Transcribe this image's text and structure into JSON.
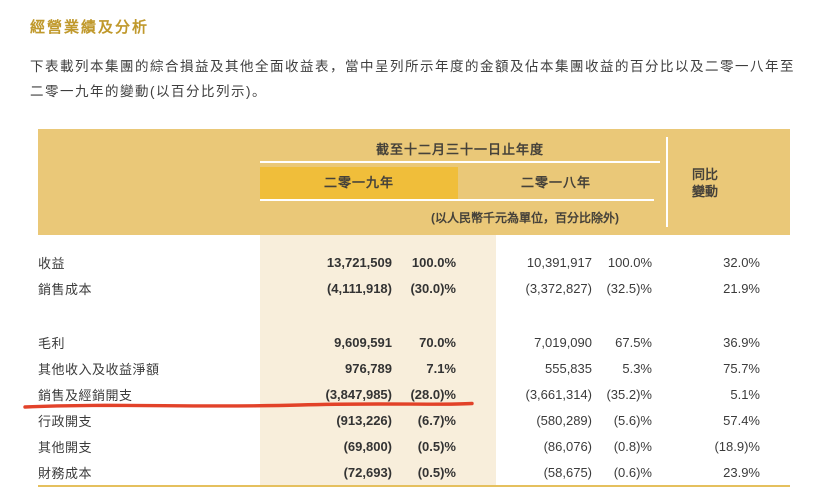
{
  "page": {
    "title": "經營業績及分析",
    "intro_lines": [
      "下表載列本集團的綜合損益及其他全面收益表，當中呈列所示年度的金額及佔本集團收益的百分比以及二零一八年至",
      "二零一九年的變動(以百分比列示)。"
    ]
  },
  "table": {
    "period_header": "截至十二月三十一日止年度",
    "col_2019": "二零一九年",
    "col_2018": "二零一八年",
    "unit_note": "(以人民幣千元為單位，百分比除外)",
    "yoy_line1": "同比",
    "yoy_line2": "變動",
    "rows": [
      {
        "label": "收益",
        "amt2019": "13,721,509",
        "pct2019": "100.0%",
        "amt2018": "10,391,917",
        "pct2018": "100.0%",
        "yoy": "32.0%"
      },
      {
        "label": "銷售成本",
        "amt2019": "(4,111,918)",
        "pct2019": "(30.0)%",
        "amt2018": "(3,372,827)",
        "pct2018": "(32.5)%",
        "yoy": "21.9%"
      },
      {
        "spacer": true
      },
      {
        "label": "毛利",
        "amt2019": "9,609,591",
        "pct2019": "70.0%",
        "amt2018": "7,019,090",
        "pct2018": "67.5%",
        "yoy": "36.9%"
      },
      {
        "label": "其他收入及收益淨額",
        "amt2019": "976,789",
        "pct2019": "7.1%",
        "amt2018": "555,835",
        "pct2018": "5.3%",
        "yoy": "75.7%"
      },
      {
        "label": "銷售及經銷開支",
        "amt2019": "(3,847,985)",
        "pct2019": "(28.0)%",
        "amt2018": "(3,661,314)",
        "pct2018": "(35.2)%",
        "yoy": "5.1%"
      },
      {
        "label": "行政開支",
        "amt2019": "(913,226)",
        "pct2019": "(6.7)%",
        "amt2018": "(580,289)",
        "pct2018": "(5.6)%",
        "yoy": "57.4%"
      },
      {
        "label": "其他開支",
        "amt2019": "(69,800)",
        "pct2019": "(0.5)%",
        "amt2018": "(86,076)",
        "pct2018": "(0.8)%",
        "yoy": "(18.9)%"
      },
      {
        "label": "財務成本",
        "amt2019": "(72,693)",
        "pct2019": "(0.5)%",
        "amt2018": "(58,675)",
        "pct2018": "(0.6)%",
        "yoy": "23.9%"
      }
    ]
  },
  "annotation": {
    "type": "red-underline",
    "target_row": "銷售及經銷開支"
  },
  "colors": {
    "accent_gold": "#c0992c",
    "header_gold": "#eac878",
    "highlight_gold": "#f0be3a",
    "column_cream": "#f8eedb",
    "annotation_red": "#e0381f"
  }
}
